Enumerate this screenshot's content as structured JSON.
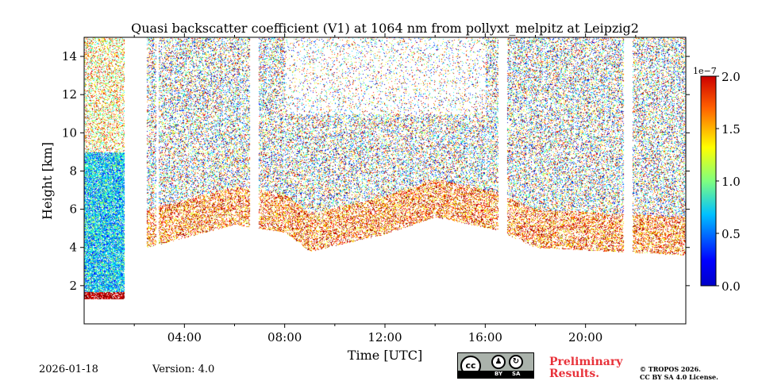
{
  "chart_data": {
    "type": "heatmap",
    "title": "Quasi backscatter coefficient (V1) at 1064 nm from pollyxt_melpitz at Leipzig2",
    "xlabel": "Time [UTC]",
    "ylabel": "Height [km]",
    "xlim_hours": [
      0,
      24
    ],
    "ylim_km": [
      0,
      15
    ],
    "x_ticks": [
      {
        "hour": 4,
        "label": "04:00"
      },
      {
        "hour": 8,
        "label": "08:00"
      },
      {
        "hour": 12,
        "label": "12:00"
      },
      {
        "hour": 16,
        "label": "16:00"
      },
      {
        "hour": 20,
        "label": "20:00"
      }
    ],
    "y_ticks": [
      {
        "value": 2,
        "label": "2"
      },
      {
        "value": 4,
        "label": "4"
      },
      {
        "value": 6,
        "label": "6"
      },
      {
        "value": 8,
        "label": "8"
      },
      {
        "value": 10,
        "label": "10"
      },
      {
        "value": 12,
        "label": "12"
      },
      {
        "value": 14,
        "label": "14"
      }
    ],
    "colorbar": {
      "colormap": "jet",
      "range": [
        0.0,
        2.0
      ],
      "scale_label": "1e−7",
      "ticks": [
        "0.0",
        "0.5",
        "1.0",
        "1.5",
        "2.0"
      ]
    },
    "data_gaps_hours": [
      [
        1.6,
        2.5
      ],
      [
        2.85,
        2.95
      ],
      [
        6.6,
        6.95
      ],
      [
        16.5,
        16.85
      ],
      [
        21.5,
        21.85
      ]
    ],
    "lowest_signal_km": [
      {
        "t": 0.0,
        "h": 1.3
      },
      {
        "t": 1.6,
        "h": 1.3
      },
      {
        "t": 2.5,
        "h": 4.0
      },
      {
        "t": 6.0,
        "h": 5.2
      },
      {
        "t": 8.0,
        "h": 4.8
      },
      {
        "t": 9.0,
        "h": 3.8
      },
      {
        "t": 12.0,
        "h": 4.7
      },
      {
        "t": 14.0,
        "h": 5.6
      },
      {
        "t": 16.5,
        "h": 4.9
      },
      {
        "t": 18.0,
        "h": 4.0
      },
      {
        "t": 24.0,
        "h": 3.6
      }
    ]
  },
  "footer": {
    "date": "2026-01-18",
    "version": "Version: 4.0",
    "preliminary_line1": "Preliminary",
    "preliminary_line2": "Results.",
    "copyright_line1": "© TROPOS 2026.",
    "copyright_line2": "CC BY SA 4.0 License.",
    "license_badge": {
      "cc": "cc",
      "by": "BY",
      "sa": "SA"
    }
  },
  "colors": {
    "jet": [
      "#00007f",
      "#0000ff",
      "#007fff",
      "#00ffff",
      "#7fff7f",
      "#ffff00",
      "#ff7f00",
      "#ff0000",
      "#7f0000"
    ],
    "preliminary": "#e8323a",
    "badge_bg": "#aab2ab"
  }
}
